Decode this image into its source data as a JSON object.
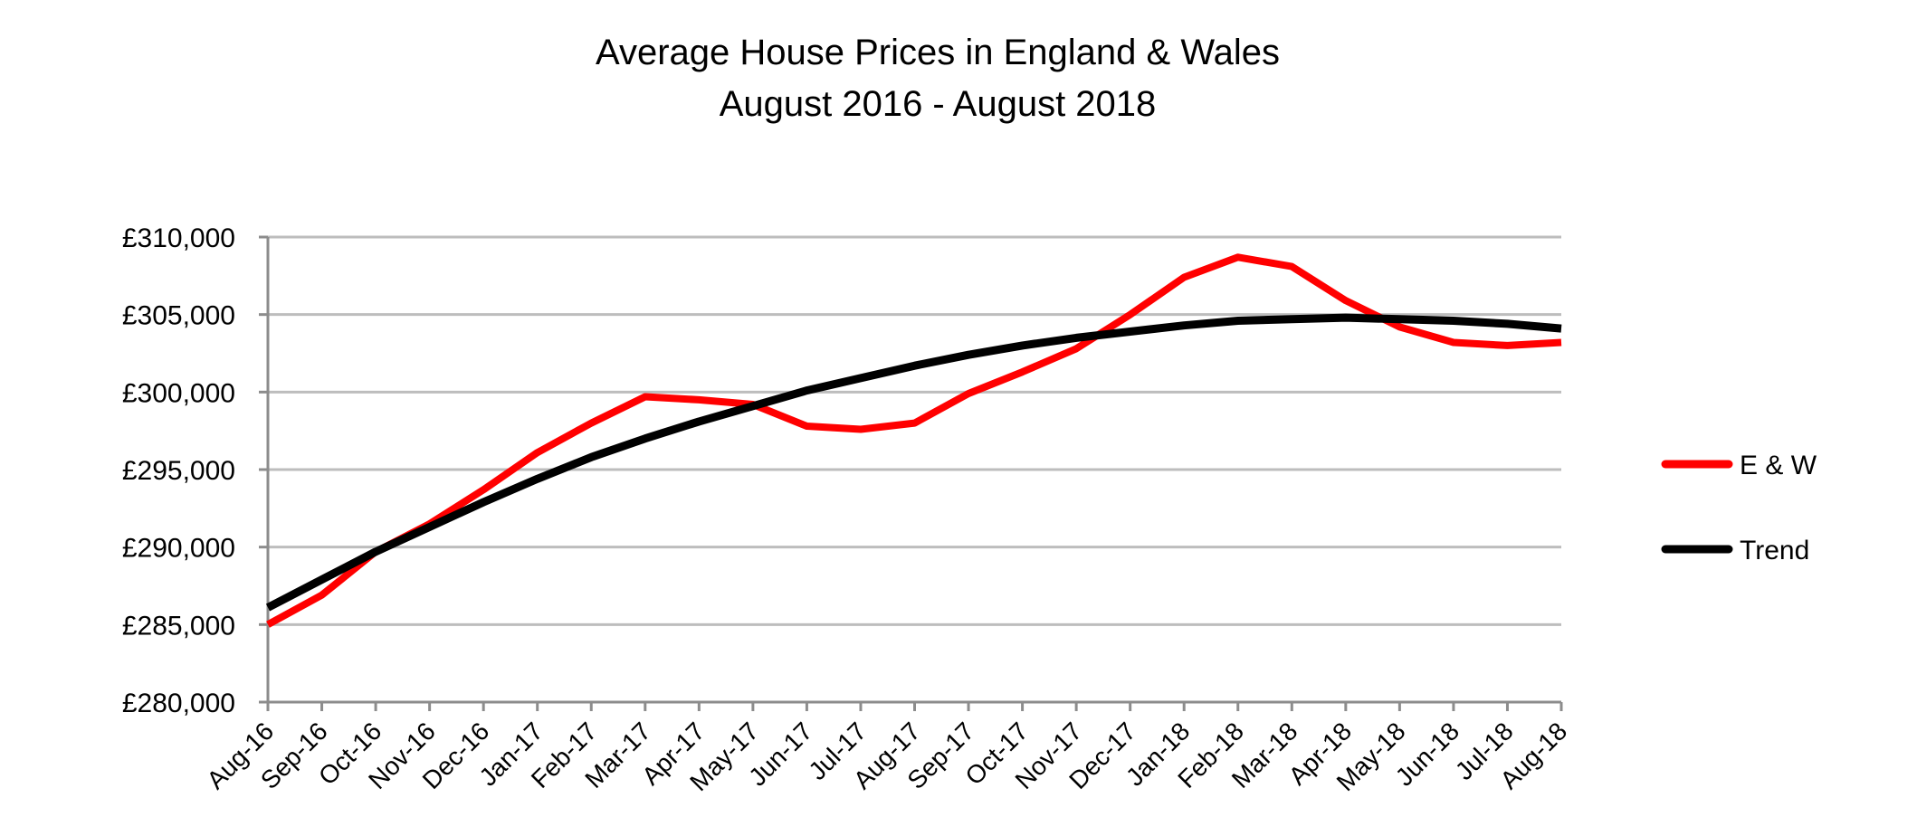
{
  "chart_data": {
    "type": "line",
    "title": "Average House Prices in England & Wales",
    "subtitle": "August 2016 - August 2018",
    "xlabel": "",
    "ylabel": "",
    "ylim": [
      280000,
      310000
    ],
    "y_ticks": [
      280000,
      285000,
      290000,
      295000,
      300000,
      305000,
      310000
    ],
    "y_tick_labels": [
      "£280,000",
      "£285,000",
      "£290,000",
      "£295,000",
      "£300,000",
      "£305,000",
      "£310,000"
    ],
    "grid": "horizontal",
    "legend_position": "right",
    "categories": [
      "Aug-16",
      "Sep-16",
      "Oct-16",
      "Nov-16",
      "Dec-16",
      "Jan-17",
      "Feb-17",
      "Mar-17",
      "Apr-17",
      "May-17",
      "Jun-17",
      "Jul-17",
      "Aug-17",
      "Sep-17",
      "Oct-17",
      "Nov-17",
      "Dec-17",
      "Jan-18",
      "Feb-18",
      "Mar-18",
      "Apr-18",
      "May-18",
      "Jun-18",
      "Jul-18",
      "Aug-18"
    ],
    "series": [
      {
        "name": "E & W",
        "color": "#ff0000",
        "values": [
          285000,
          286900,
          289700,
          291500,
          293700,
          296100,
          298000,
          299700,
          299500,
          299200,
          297800,
          297600,
          298000,
          299900,
          301300,
          302800,
          305000,
          307400,
          308700,
          308100,
          305900,
          304200,
          303200,
          303000,
          303200
        ]
      },
      {
        "name": "Trend",
        "color": "#000000",
        "values": [
          286100,
          287900,
          289700,
          291300,
          292900,
          294400,
          295800,
          297000,
          298100,
          299100,
          300100,
          300900,
          301700,
          302400,
          303000,
          303500,
          303900,
          304300,
          304600,
          304700,
          304800,
          304700,
          304600,
          304400,
          304100
        ]
      }
    ]
  }
}
